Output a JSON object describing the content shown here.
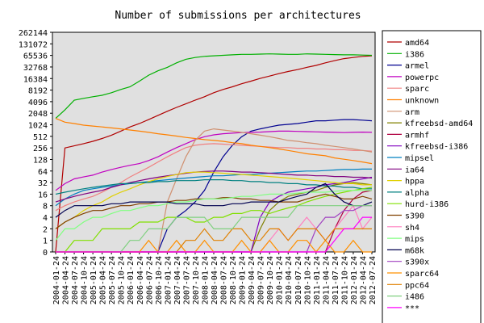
{
  "chart_data": {
    "type": "line",
    "title": "Number of submissions per architectures",
    "yscale": "log2",
    "grid": false,
    "legend": "right",
    "ylim": [
      0,
      262144
    ],
    "yticks": [
      0,
      1,
      2,
      4,
      8,
      16,
      32,
      64,
      128,
      256,
      512,
      1024,
      2048,
      4096,
      8192,
      16384,
      32768,
      65536,
      131072,
      262144
    ],
    "x": [
      "2004-01-24",
      "2004-04-24",
      "2004-07-24",
      "2004-10-24",
      "2005-01-24",
      "2005-04-24",
      "2005-07-24",
      "2005-10-24",
      "2006-01-24",
      "2006-04-24",
      "2006-07-24",
      "2006-10-24",
      "2007-01-24",
      "2007-04-24",
      "2007-07-24",
      "2007-10-24",
      "2008-01-24",
      "2008-04-24",
      "2008-07-24",
      "2008-10-24",
      "2009-01-24",
      "2009-04-24",
      "2009-07-24",
      "2009-10-24",
      "2010-01-24",
      "2010-04-24",
      "2010-07-24",
      "2010-10-24",
      "2011-01-24",
      "2011-04-24",
      "2011-07-24",
      "2011-10-24",
      "2012-01-24",
      "2012-04-24",
      "2012-07-24"
    ],
    "series": [
      {
        "name": "amd64",
        "color": "#b00000",
        "values": [
          0,
          256,
          290,
          330,
          380,
          450,
          550,
          700,
          900,
          1100,
          1400,
          1800,
          2300,
          2900,
          3600,
          4500,
          5500,
          7000,
          8500,
          10000,
          12000,
          14000,
          16500,
          19000,
          22000,
          25000,
          28000,
          32000,
          36000,
          42000,
          48000,
          54000,
          58000,
          62000,
          64000
        ]
      },
      {
        "name": "i386",
        "color": "#00b000",
        "values": [
          1500,
          2500,
          4500,
          5000,
          5500,
          6000,
          7000,
          8500,
          10000,
          14000,
          20000,
          26000,
          32000,
          42000,
          52000,
          58000,
          62000,
          64000,
          66000,
          68000,
          70000,
          70000,
          71000,
          72000,
          71000,
          70000,
          70000,
          72000,
          71000,
          70000,
          69000,
          68000,
          68000,
          67000,
          66000
        ]
      },
      {
        "name": "armel",
        "color": "#000090",
        "values": [
          0,
          0,
          0,
          0,
          0,
          0,
          0,
          0,
          0,
          0,
          0,
          0,
          2,
          4,
          6,
          10,
          20,
          60,
          150,
          300,
          500,
          700,
          800,
          900,
          1000,
          1050,
          1100,
          1200,
          1300,
          1300,
          1350,
          1400,
          1400,
          1350,
          1300
        ]
      },
      {
        "name": "powerpc",
        "color": "#c000c0",
        "values": [
          20,
          30,
          40,
          45,
          50,
          60,
          70,
          80,
          90,
          100,
          120,
          150,
          200,
          260,
          330,
          420,
          500,
          560,
          600,
          620,
          640,
          650,
          660,
          680,
          700,
          700,
          690,
          680,
          670,
          660,
          650,
          640,
          650,
          660,
          650
        ]
      },
      {
        "name": "sparc",
        "color": "#f08080",
        "values": [
          6,
          8,
          10,
          12,
          14,
          18,
          24,
          32,
          45,
          60,
          80,
          110,
          150,
          200,
          260,
          300,
          320,
          330,
          320,
          310,
          300,
          290,
          280,
          270,
          260,
          260,
          250,
          250,
          240,
          240,
          230,
          230,
          220,
          220,
          210
        ]
      },
      {
        "name": "unknown",
        "color": "#ff8000",
        "values": [
          1500,
          1200,
          1100,
          1000,
          950,
          900,
          850,
          800,
          750,
          700,
          650,
          600,
          560,
          520,
          480,
          450,
          420,
          400,
          380,
          350,
          330,
          300,
          280,
          260,
          240,
          220,
          200,
          180,
          170,
          160,
          140,
          130,
          120,
          110,
          100
        ]
      },
      {
        "name": "arm",
        "color": "#d09070",
        "values": [
          0,
          0,
          0,
          0,
          0,
          0,
          0,
          0,
          0,
          0,
          0,
          0,
          10,
          40,
          150,
          400,
          700,
          800,
          750,
          700,
          650,
          600,
          550,
          500,
          450,
          400,
          380,
          350,
          330,
          300,
          280,
          260,
          240,
          220,
          200
        ]
      },
      {
        "name": "kfreebsd-amd64",
        "color": "#808000",
        "values": [
          0,
          0,
          0,
          0,
          0,
          0,
          0,
          0,
          0,
          0,
          0,
          0,
          0,
          0,
          0,
          0,
          0,
          0,
          0,
          0,
          0,
          0,
          2,
          6,
          10,
          14,
          16,
          18,
          20,
          24,
          28,
          30,
          32,
          30,
          28
        ]
      },
      {
        "name": "armhf",
        "color": "#b00040",
        "values": [
          0,
          0,
          0,
          0,
          0,
          0,
          0,
          0,
          0,
          0,
          0,
          0,
          0,
          0,
          0,
          0,
          0,
          0,
          0,
          0,
          0,
          0,
          0,
          0,
          0,
          0,
          0,
          0,
          0,
          0,
          2,
          6,
          12,
          18,
          20
        ]
      },
      {
        "name": "kfreebsd-i386",
        "color": "#8000c0",
        "values": [
          0,
          0,
          0,
          0,
          0,
          0,
          0,
          0,
          0,
          0,
          0,
          0,
          0,
          0,
          0,
          0,
          0,
          0,
          0,
          0,
          0,
          0,
          4,
          10,
          14,
          18,
          20,
          22,
          24,
          28,
          30,
          32,
          36,
          40,
          44
        ]
      },
      {
        "name": "mipsel",
        "color": "#0080c0",
        "values": [
          8,
          12,
          16,
          20,
          22,
          24,
          26,
          28,
          30,
          32,
          34,
          36,
          38,
          40,
          42,
          44,
          46,
          48,
          48,
          50,
          52,
          52,
          54,
          56,
          58,
          60,
          62,
          64,
          64,
          66,
          68,
          70,
          70,
          72,
          72
        ]
      },
      {
        "name": "ia64",
        "color": "#800080",
        "values": [
          10,
          12,
          14,
          16,
          18,
          20,
          24,
          28,
          32,
          36,
          40,
          44,
          48,
          52,
          56,
          60,
          62,
          64,
          64,
          62,
          60,
          60,
          58,
          56,
          54,
          52,
          50,
          50,
          48,
          48,
          46,
          46,
          44,
          44,
          42
        ]
      },
      {
        "name": "hppa",
        "color": "#e0d000",
        "values": [
          2,
          3,
          4,
          6,
          8,
          10,
          14,
          18,
          22,
          28,
          34,
          40,
          46,
          52,
          58,
          60,
          60,
          58,
          56,
          54,
          52,
          50,
          48,
          46,
          44,
          42,
          40,
          38,
          36,
          34,
          32,
          30,
          30,
          28,
          28
        ]
      },
      {
        "name": "alpha",
        "color": "#008080",
        "values": [
          16,
          18,
          20,
          22,
          24,
          26,
          28,
          30,
          30,
          32,
          32,
          34,
          34,
          36,
          36,
          36,
          38,
          38,
          38,
          36,
          36,
          34,
          34,
          32,
          32,
          30,
          30,
          28,
          28,
          26,
          26,
          24,
          24,
          22,
          22
        ]
      },
      {
        "name": "hurd-i386",
        "color": "#80e000",
        "values": [
          0,
          0,
          1,
          1,
          1,
          2,
          2,
          2,
          2,
          3,
          3,
          3,
          4,
          4,
          4,
          3,
          3,
          4,
          4,
          5,
          5,
          6,
          6,
          5,
          6,
          7,
          8,
          10,
          12,
          14,
          16,
          18,
          20,
          22,
          24
        ]
      },
      {
        "name": "s390",
        "color": "#804000",
        "values": [
          2,
          3,
          4,
          5,
          6,
          6,
          7,
          8,
          8,
          9,
          9,
          10,
          10,
          11,
          11,
          12,
          12,
          12,
          13,
          13,
          12,
          12,
          11,
          11,
          10,
          10,
          10,
          12,
          14,
          16,
          14,
          12,
          12,
          14,
          12
        ]
      },
      {
        "name": "sh4",
        "color": "#ff80c0",
        "values": [
          0,
          0,
          0,
          0,
          0,
          0,
          0,
          0,
          0,
          0,
          0,
          0,
          0,
          0,
          0,
          0,
          0,
          0,
          0,
          0,
          0,
          0,
          0,
          1,
          2,
          1,
          2,
          4,
          2,
          1,
          2,
          4,
          8,
          2,
          4
        ]
      },
      {
        "name": "mips",
        "color": "#80ff80",
        "values": [
          1,
          2,
          2,
          3,
          4,
          4,
          5,
          6,
          6,
          7,
          8,
          8,
          9,
          10,
          10,
          11,
          12,
          12,
          12,
          13,
          14,
          14,
          15,
          16,
          16,
          16,
          17,
          18,
          18,
          18,
          19,
          20,
          20,
          20,
          20
        ]
      },
      {
        "name": "m68k",
        "color": "#000050",
        "values": [
          4,
          6,
          8,
          8,
          8,
          8,
          9,
          9,
          10,
          10,
          10,
          10,
          10,
          9,
          9,
          9,
          8,
          8,
          8,
          9,
          9,
          10,
          10,
          10,
          10,
          12,
          14,
          16,
          24,
          30,
          16,
          10,
          8,
          8,
          10
        ]
      },
      {
        "name": "s390x",
        "color": "#a040c0",
        "values": [
          0,
          0,
          0,
          0,
          0,
          0,
          0,
          0,
          0,
          0,
          0,
          0,
          0,
          0,
          0,
          0,
          0,
          0,
          0,
          0,
          0,
          0,
          0,
          0,
          0,
          0,
          0,
          0,
          2,
          4,
          4,
          6,
          6,
          8,
          8
        ]
      },
      {
        "name": "sparc64",
        "color": "#ff9000",
        "values": [
          0,
          0,
          0,
          0,
          0,
          0,
          0,
          0,
          0,
          0,
          1,
          0,
          0,
          1,
          0,
          0,
          1,
          0,
          0,
          0,
          1,
          0,
          0,
          1,
          0,
          0,
          1,
          1,
          0,
          1,
          0,
          0,
          1,
          0,
          0
        ]
      },
      {
        "name": "ppc64",
        "color": "#e08000",
        "values": [
          0,
          0,
          0,
          0,
          0,
          0,
          0,
          0,
          0,
          0,
          0,
          0,
          0,
          0,
          1,
          1,
          2,
          1,
          1,
          2,
          2,
          1,
          1,
          2,
          2,
          1,
          2,
          2,
          2,
          1,
          2,
          2,
          2,
          2,
          2
        ]
      },
      {
        "name": "i486",
        "color": "#80d080",
        "values": [
          0,
          0,
          0,
          0,
          0,
          0,
          0,
          0,
          1,
          1,
          2,
          2,
          2,
          4,
          4,
          4,
          4,
          2,
          2,
          2,
          4,
          4,
          4,
          4,
          4,
          4,
          8,
          8,
          8,
          8,
          8,
          8,
          8,
          8,
          8
        ]
      },
      {
        "name": "***",
        "color": "#ff00ff",
        "values": [
          0,
          0,
          0,
          0,
          0,
          0,
          0,
          0,
          0,
          0,
          0,
          0,
          0,
          0,
          0,
          0,
          0,
          0,
          0,
          0,
          0,
          0,
          0,
          0,
          0,
          0,
          0,
          0,
          0,
          0,
          1,
          2,
          2,
          4,
          4
        ]
      }
    ]
  }
}
